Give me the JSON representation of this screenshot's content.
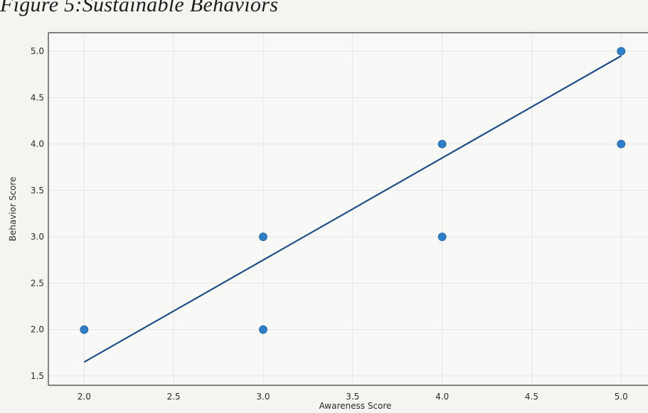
{
  "figure_title": "Figure 5:Sustainable Behaviors",
  "colors": {
    "background": "#f4f4f1",
    "plot_background": "#f8f8f6",
    "axes": "#3a3a3a",
    "grid": "#e6e6e2",
    "points": "#2f7fc8",
    "trend_line": "#1f4f86"
  },
  "chart_data": {
    "type": "scatter",
    "title": "",
    "xlabel": "Awareness Score",
    "ylabel": "Behavior Score",
    "xlim": [
      1.8,
      5.15
    ],
    "ylim": [
      1.4,
      5.2
    ],
    "grid": true,
    "x_ticks": [
      "2.0",
      "2.5",
      "3.0",
      "3.5",
      "4.0",
      "4.5",
      "5.0"
    ],
    "y_ticks": [
      "1.5",
      "2.0",
      "2.5",
      "3.0",
      "3.5",
      "4.0",
      "4.5",
      "5.0"
    ],
    "points": [
      {
        "x": 2.0,
        "y": 2.0
      },
      {
        "x": 3.0,
        "y": 3.0
      },
      {
        "x": 3.0,
        "y": 2.0
      },
      {
        "x": 4.0,
        "y": 4.0
      },
      {
        "x": 4.0,
        "y": 3.0
      },
      {
        "x": 5.0,
        "y": 5.0
      },
      {
        "x": 5.0,
        "y": 4.0
      }
    ],
    "trend_line": {
      "x": [
        2.0,
        5.0
      ],
      "y": [
        1.65,
        4.95
      ]
    }
  }
}
